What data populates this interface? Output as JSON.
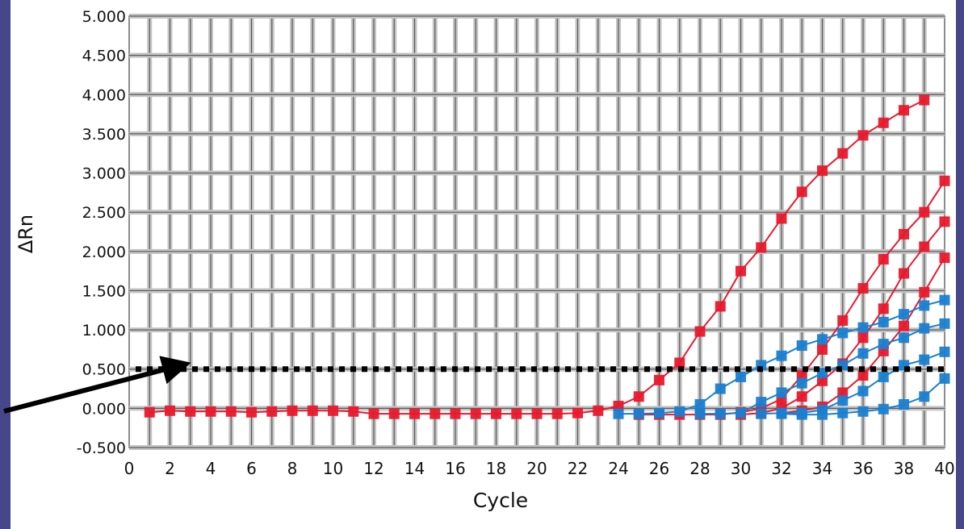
{
  "chart_data": {
    "type": "line",
    "xlabel": "Cycle",
    "ylabel": "ΔRn",
    "xlim": [
      0,
      40
    ],
    "ylim": [
      -0.5,
      5.0
    ],
    "x_ticks": [
      "0",
      "2",
      "4",
      "6",
      "8",
      "10",
      "12",
      "14",
      "16",
      "18",
      "20",
      "22",
      "24",
      "26",
      "28",
      "30",
      "32",
      "34",
      "36",
      "38",
      "40"
    ],
    "y_ticks": [
      "5.000",
      "4.500",
      "4.000",
      "3.500",
      "3.000",
      "2.500",
      "2.000",
      "1.500",
      "1.000",
      "0.500",
      "0.000",
      "-0.500"
    ],
    "threshold": 0.5,
    "grid": true,
    "legend": "none",
    "colors": {
      "red": "#e8192c",
      "blue": "#1a7fd0",
      "threshold": "#000000",
      "annotation": "#000000"
    },
    "series": [
      {
        "color": "red",
        "x": [
          1,
          2,
          3,
          4,
          5,
          6,
          7,
          8,
          9,
          10,
          11,
          12,
          13,
          14,
          15,
          16,
          17,
          18,
          19,
          20,
          21,
          22,
          23,
          24,
          25,
          26,
          27,
          28,
          29,
          30,
          31,
          32,
          33,
          34,
          35,
          36,
          37,
          38,
          39
        ],
        "values": [
          -0.05,
          -0.03,
          -0.04,
          -0.04,
          -0.04,
          -0.05,
          -0.04,
          -0.03,
          -0.03,
          -0.03,
          -0.04,
          -0.07,
          -0.07,
          -0.07,
          -0.07,
          -0.07,
          -0.07,
          -0.07,
          -0.07,
          -0.07,
          -0.07,
          -0.06,
          -0.03,
          0.03,
          0.15,
          0.36,
          0.58,
          0.98,
          1.3,
          1.75,
          2.05,
          2.42,
          2.76,
          3.03,
          3.25,
          3.48,
          3.64,
          3.8,
          3.93
        ]
      },
      {
        "color": "red",
        "x": [
          25,
          26,
          27,
          28,
          29,
          30,
          31,
          32,
          33,
          34,
          35,
          36,
          37,
          38,
          39,
          40
        ],
        "values": [
          -0.08,
          -0.08,
          -0.08,
          -0.08,
          -0.08,
          -0.05,
          0.0,
          0.12,
          0.42,
          0.75,
          1.12,
          1.53,
          1.9,
          2.22,
          2.5,
          2.9
        ]
      },
      {
        "color": "red",
        "x": [
          30,
          31,
          32,
          33,
          34,
          35,
          36,
          37,
          38,
          39,
          40
        ],
        "values": [
          -0.08,
          -0.06,
          0.0,
          0.15,
          0.35,
          0.57,
          0.9,
          1.27,
          1.72,
          2.06,
          2.38
        ]
      },
      {
        "color": "red",
        "x": [
          32,
          33,
          34,
          35,
          36,
          37,
          38,
          39,
          40
        ],
        "values": [
          -0.06,
          -0.03,
          0.02,
          0.2,
          0.42,
          0.73,
          1.05,
          1.48,
          1.92
        ]
      },
      {
        "color": "blue",
        "x": [
          24,
          25,
          26,
          27,
          28,
          29,
          30,
          31,
          32,
          33,
          34,
          35,
          36,
          37,
          38,
          39,
          40
        ],
        "values": [
          -0.07,
          -0.07,
          -0.06,
          -0.04,
          0.05,
          0.25,
          0.4,
          0.55,
          0.67,
          0.8,
          0.88,
          0.96,
          1.03,
          1.1,
          1.2,
          1.31,
          1.38
        ]
      },
      {
        "color": "blue",
        "x": [
          28,
          29,
          30,
          31,
          32,
          33,
          34,
          35,
          36,
          37,
          38,
          39,
          40
        ],
        "values": [
          -0.07,
          -0.07,
          -0.06,
          0.08,
          0.2,
          0.32,
          0.45,
          0.55,
          0.7,
          0.82,
          0.9,
          1.02,
          1.08
        ]
      },
      {
        "color": "blue",
        "x": [
          31,
          32,
          33,
          34,
          35,
          36,
          37,
          38,
          39,
          40
        ],
        "values": [
          -0.07,
          -0.06,
          -0.06,
          -0.02,
          0.1,
          0.22,
          0.4,
          0.55,
          0.62,
          0.72
        ]
      },
      {
        "color": "blue",
        "x": [
          32,
          33,
          34,
          35,
          36,
          37,
          38,
          39,
          40
        ],
        "values": [
          -0.07,
          -0.08,
          -0.08,
          -0.06,
          -0.04,
          -0.01,
          0.05,
          0.15,
          0.38
        ]
      }
    ]
  }
}
